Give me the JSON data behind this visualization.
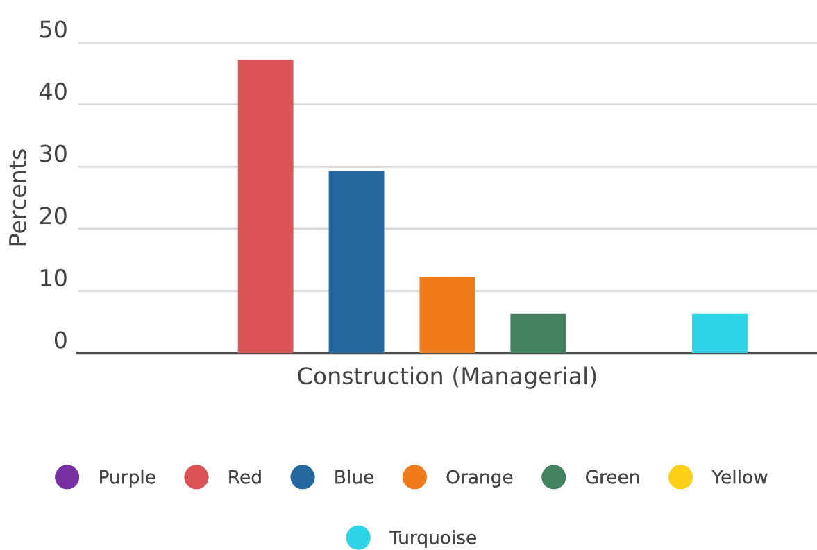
{
  "chart_data": {
    "type": "bar",
    "ylabel": "Percents",
    "categories": [
      "Construction (Managerial)"
    ],
    "series": [
      {
        "name": "Purple",
        "color": "#7630a2",
        "values": [
          0
        ]
      },
      {
        "name": "Red",
        "color": "#dc5356",
        "values": [
          47.2
        ]
      },
      {
        "name": "Blue",
        "color": "#23679e",
        "values": [
          29.3
        ]
      },
      {
        "name": "Orange",
        "color": "#ef7b1a",
        "values": [
          12.2
        ]
      },
      {
        "name": "Green",
        "color": "#43835f",
        "values": [
          6.3
        ]
      },
      {
        "name": "Yellow",
        "color": "#fdd017",
        "values": [
          0
        ]
      },
      {
        "name": "Turquoise",
        "color": "#2dd4e6",
        "values": [
          6.3
        ]
      }
    ],
    "ylim": [
      0,
      50
    ],
    "yticks": [
      0,
      10,
      20,
      30,
      40,
      50
    ],
    "grid": "y",
    "legend": "bottom"
  }
}
